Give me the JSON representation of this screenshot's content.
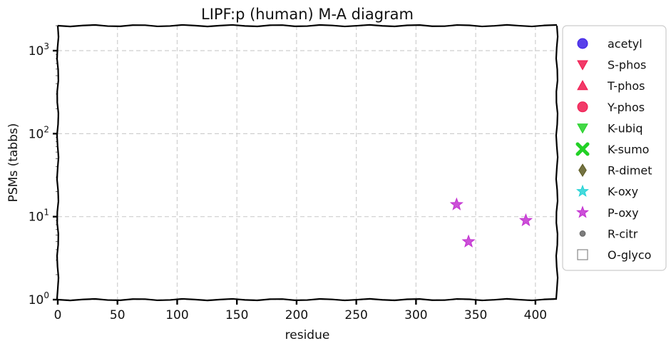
{
  "chart_data": {
    "type": "scatter",
    "title": "LIPF:p (human) M-A diagram",
    "xlabel": "residue",
    "ylabel": "PSMs (tabbs)",
    "xlim": [
      0,
      418
    ],
    "ylim": [
      1,
      2000
    ],
    "yscale": "log",
    "grid": true,
    "legend_position": "right outside",
    "x_ticks": [
      "0",
      "50",
      "100",
      "150",
      "200",
      "250",
      "300",
      "350",
      "400"
    ],
    "x_tick_values": [
      0,
      50,
      100,
      150,
      200,
      250,
      300,
      350,
      400
    ],
    "y_tick_values": [
      1,
      10,
      100,
      1000
    ],
    "y_tick_labels": [
      {
        "base": "10",
        "exp": "0"
      },
      {
        "base": "10",
        "exp": "1"
      },
      {
        "base": "10",
        "exp": "2"
      },
      {
        "base": "10",
        "exp": "3"
      }
    ],
    "series": [
      {
        "name": "acetyl",
        "marker": "circle",
        "color": "#3b1ee6",
        "points": []
      },
      {
        "name": "S-phos",
        "marker": "triangle-down",
        "color": "#f0194f",
        "points": []
      },
      {
        "name": "T-phos",
        "marker": "triangle-up",
        "color": "#f0194f",
        "points": []
      },
      {
        "name": "Y-phos",
        "marker": "circle",
        "color": "#f0194f",
        "points": []
      },
      {
        "name": "K-ubiq",
        "marker": "triangle-down",
        "color": "#22d126",
        "points": []
      },
      {
        "name": "K-sumo",
        "marker": "x",
        "color": "#22d126",
        "points": []
      },
      {
        "name": "R-dimet",
        "marker": "diamond",
        "color": "#5c5a21",
        "points": []
      },
      {
        "name": "K-oxy",
        "marker": "star",
        "color": "#25d3d6",
        "points": []
      },
      {
        "name": "P-oxy",
        "marker": "star",
        "color": "#c331d1",
        "points": [
          {
            "x": 334,
            "y": 14
          },
          {
            "x": 344,
            "y": 5
          },
          {
            "x": 392,
            "y": 9
          }
        ]
      },
      {
        "name": "R-citr",
        "marker": "circle-small",
        "color": "#666666",
        "points": []
      },
      {
        "name": "O-glyco",
        "marker": "square-open",
        "color": "#888888",
        "points": []
      }
    ]
  }
}
